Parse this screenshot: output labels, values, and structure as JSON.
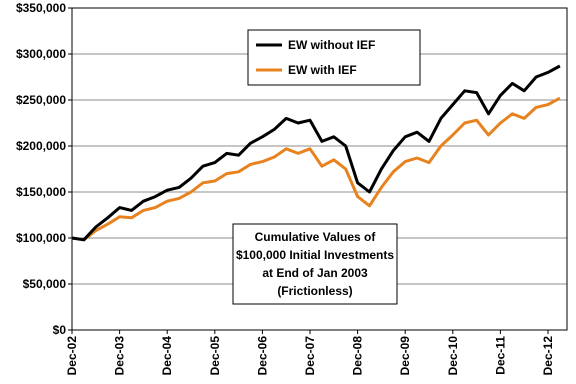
{
  "chart_data": {
    "type": "line",
    "annotation": [
      "Cumulative Values of",
      "$100,000 Initial Investments",
      "at End of Jan 2003",
      "(Frictionless)"
    ],
    "categories": [
      "Dec-02",
      null,
      null,
      null,
      "Dec-03",
      null,
      null,
      null,
      "Dec-04",
      null,
      null,
      null,
      "Dec-05",
      null,
      null,
      null,
      "Dec-06",
      null,
      null,
      null,
      "Dec-07",
      null,
      null,
      null,
      "Dec-08",
      null,
      null,
      null,
      "Dec-09",
      null,
      null,
      null,
      "Dec-10",
      null,
      null,
      null,
      "Dec-11",
      null,
      null,
      null,
      "Dec-12",
      null
    ],
    "series": [
      {
        "name": "EW without IEF",
        "color": "#000000",
        "values": [
          100000,
          98000,
          112000,
          122000,
          133000,
          130000,
          140000,
          145000,
          152000,
          155000,
          165000,
          178000,
          182000,
          192000,
          190000,
          203000,
          210000,
          218000,
          230000,
          225000,
          228000,
          205000,
          210000,
          200000,
          160000,
          150000,
          175000,
          195000,
          210000,
          215000,
          205000,
          230000,
          245000,
          260000,
          258000,
          235000,
          255000,
          268000,
          260000,
          275000,
          280000,
          287000
        ]
      },
      {
        "name": "EW with IEF",
        "color": "#e8821e",
        "values": [
          100000,
          98000,
          108000,
          115000,
          123000,
          122000,
          130000,
          133000,
          140000,
          143000,
          150000,
          160000,
          162000,
          170000,
          172000,
          180000,
          183000,
          188000,
          197000,
          192000,
          197000,
          178000,
          185000,
          175000,
          145000,
          135000,
          155000,
          172000,
          183000,
          187000,
          182000,
          200000,
          212000,
          225000,
          228000,
          212000,
          225000,
          235000,
          230000,
          242000,
          245000,
          252000
        ]
      }
    ],
    "ylim": [
      0,
      350000
    ],
    "yticks": [
      {
        "value": 0,
        "label": "$0"
      },
      {
        "value": 50000,
        "label": "$50,000"
      },
      {
        "value": 100000,
        "label": "$100,000"
      },
      {
        "value": 150000,
        "label": "$150,000"
      },
      {
        "value": 200000,
        "label": "$200,000"
      },
      {
        "value": 250000,
        "label": "$250,000"
      },
      {
        "value": 300000,
        "label": "$300,000"
      },
      {
        "value": 350000,
        "label": "$350,000"
      }
    ],
    "grid": true
  }
}
